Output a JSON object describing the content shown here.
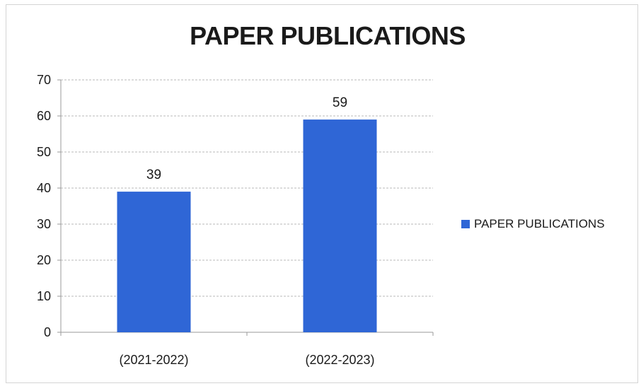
{
  "chart_data": {
    "type": "bar",
    "title": "PAPER PUBLICATIONS",
    "categories": [
      "(2021-2022)",
      "(2022-2023)"
    ],
    "series": [
      {
        "name": "PAPER PUBLICATIONS",
        "values": [
          39,
          59
        ],
        "color": "#2f66d6"
      }
    ],
    "data_labels": [
      "39",
      "59"
    ],
    "y_ticks": [
      "0",
      "10",
      "20",
      "30",
      "40",
      "50",
      "60",
      "70"
    ],
    "ylim": [
      0,
      70
    ],
    "grid": true,
    "legend_position": "right"
  }
}
